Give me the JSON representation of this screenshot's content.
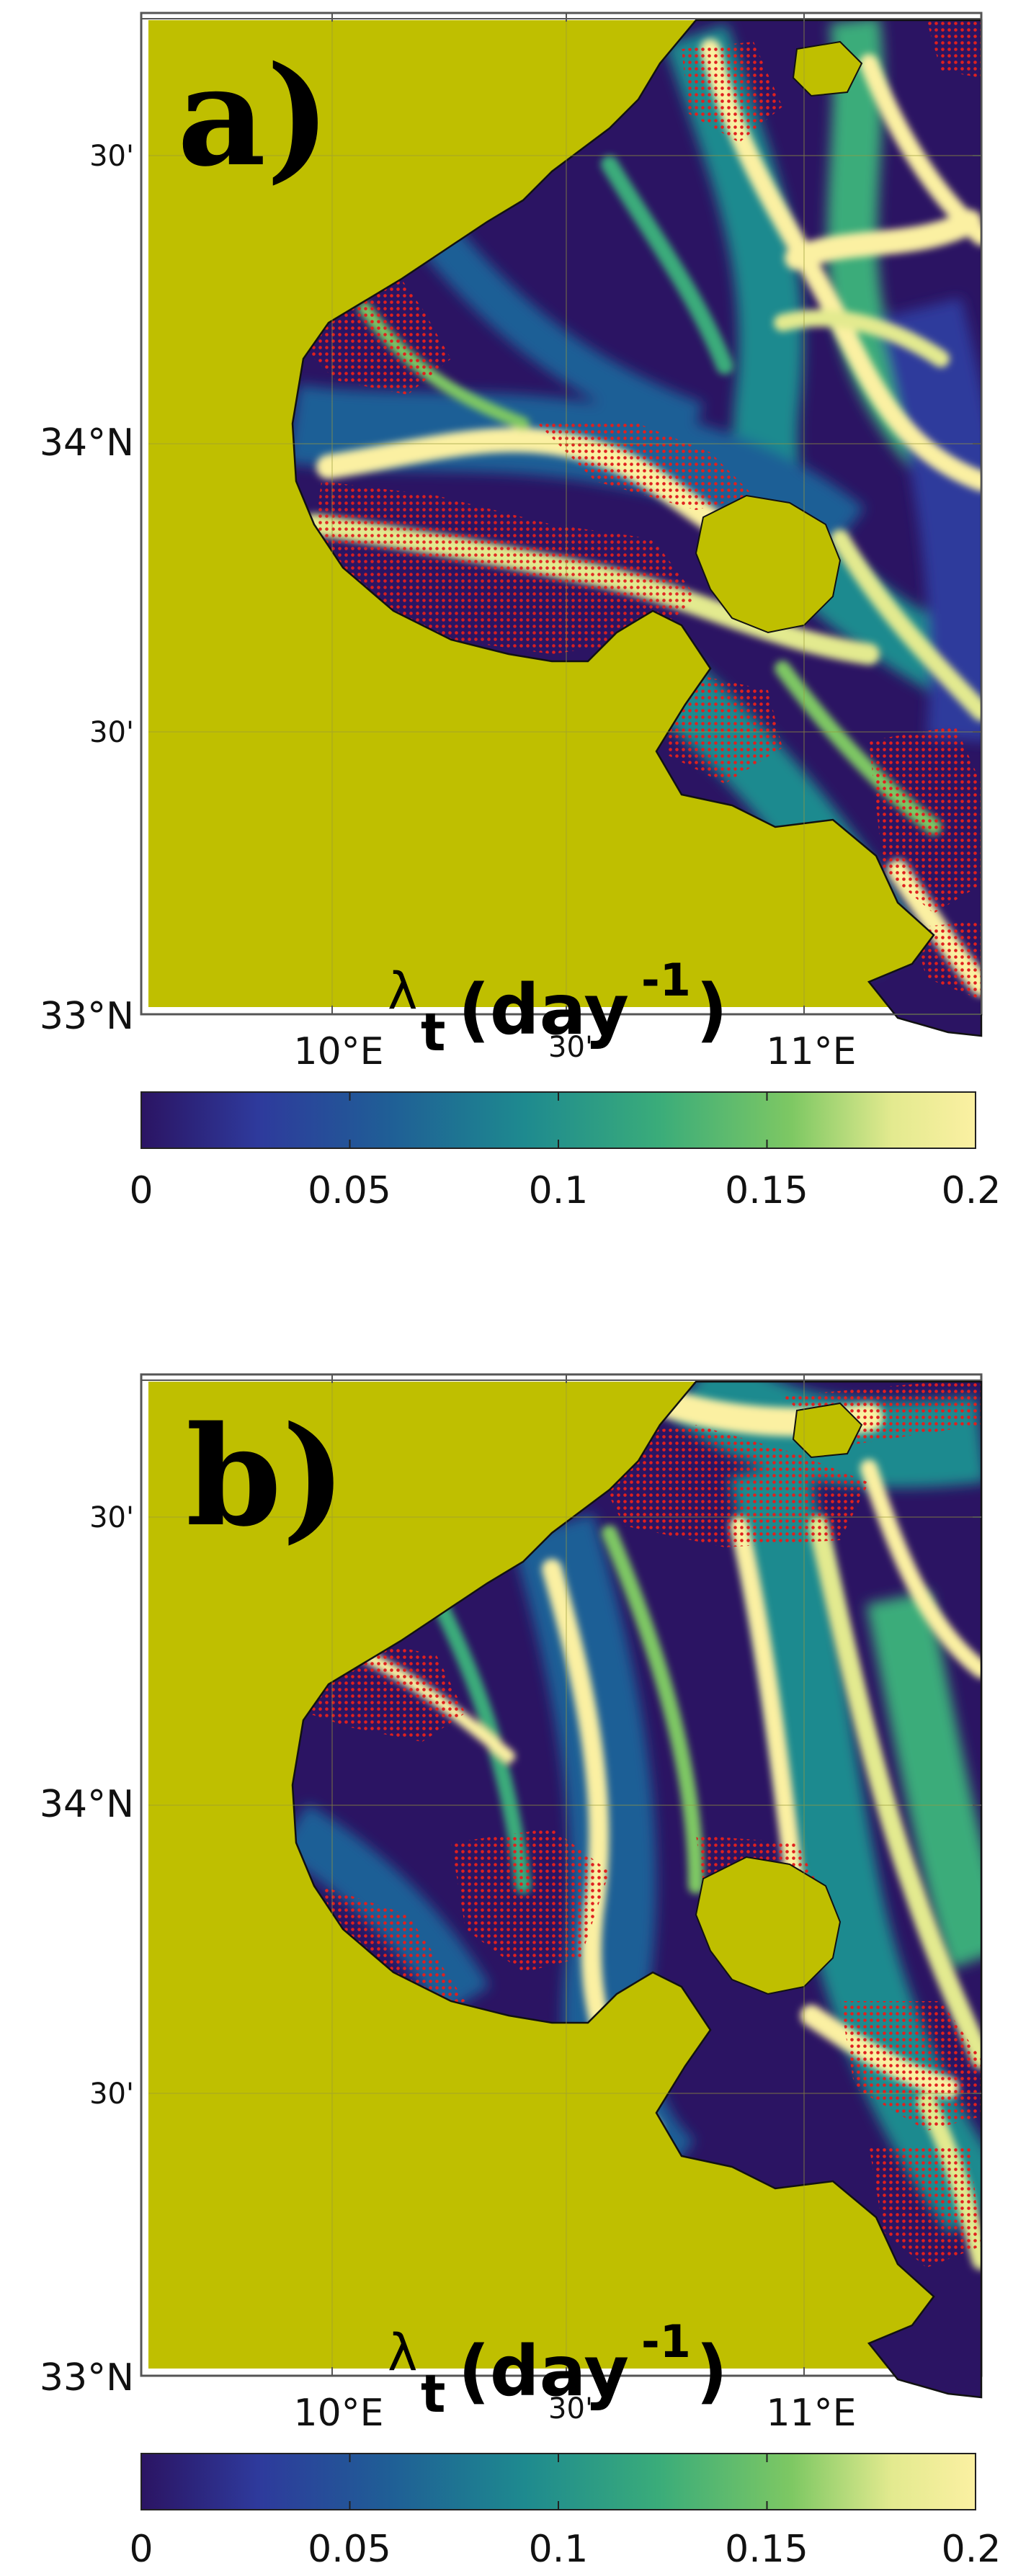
{
  "colors": {
    "land": "#bfbf00",
    "stipple": "#e0201e",
    "frame": "#333333",
    "colormap": [
      "#2b1463",
      "#2e3a9c",
      "#1f5f96",
      "#1e8a8f",
      "#3aac7a",
      "#7ec863",
      "#e3ea8f",
      "#fbf0a2"
    ]
  },
  "panels": [
    {
      "label": "a)",
      "lat_ticks": [
        "30'",
        "34°N",
        "30'",
        "33°N"
      ],
      "lon_ticks": [
        "10°E",
        "30'",
        "11°E"
      ],
      "colorbar": {
        "title_symbol": "λ",
        "title_subscript": "t",
        "title_units": "(day",
        "title_exponent": "-1",
        "title_close": ")",
        "ticks": [
          "0",
          "0.05",
          "0.1",
          "0.15",
          "0.2"
        ],
        "range": [
          0,
          0.2
        ]
      }
    },
    {
      "label": "b)",
      "lat_ticks": [
        "30'",
        "34°N",
        "30'",
        "33°N"
      ],
      "lon_ticks": [
        "10°E",
        "30'",
        "11°E"
      ],
      "colorbar": {
        "title_symbol": "λ",
        "title_subscript": "t",
        "title_units": "(day",
        "title_exponent": "-1",
        "title_close": ")",
        "ticks": [
          "0",
          "0.05",
          "0.1",
          "0.15",
          "0.2"
        ],
        "range": [
          0,
          0.2
        ]
      }
    }
  ]
}
